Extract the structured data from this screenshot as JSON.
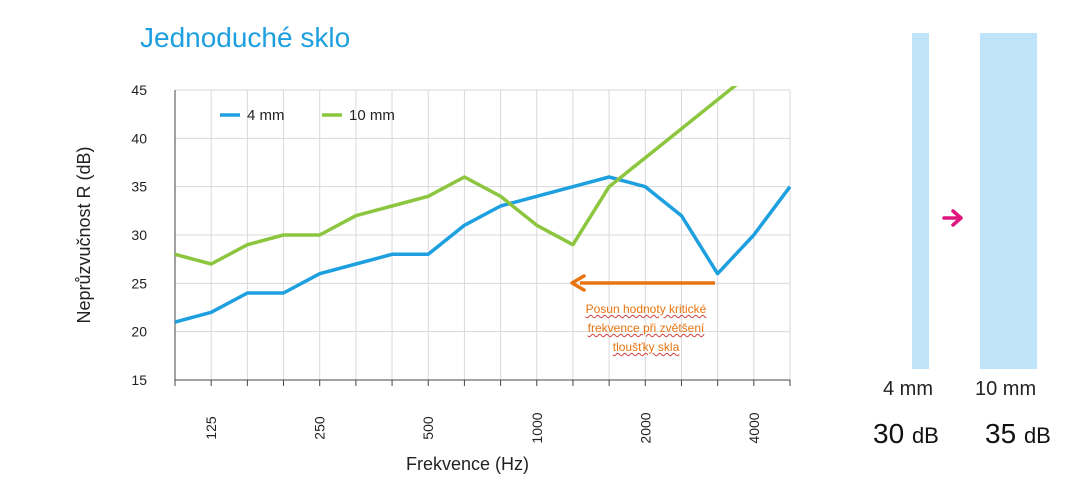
{
  "title": "Jednoduché sklo",
  "chart_data": {
    "type": "line",
    "ylabel": "Neprůzvučnost R (dB)",
    "xlabel": "Frekvence (Hz)",
    "ylim": [
      15,
      45
    ],
    "y_ticks": [
      15,
      20,
      25,
      30,
      35,
      40,
      45
    ],
    "x_tick_labels": [
      "125",
      "250",
      "500",
      "1000",
      "2000",
      "4000"
    ],
    "x": [
      "100",
      "125",
      "160",
      "200",
      "250",
      "315",
      "400",
      "500",
      "630",
      "800",
      "1000",
      "1250",
      "1600",
      "2000",
      "2500",
      "3150",
      "4000",
      "5000"
    ],
    "grid": true,
    "legend_position": "top-left",
    "series": [
      {
        "name": "4 mm",
        "color": "#1ea0e0",
        "values": [
          21,
          22,
          24,
          24,
          26,
          27,
          28,
          28,
          31,
          33,
          34,
          35,
          36,
          35,
          32,
          26,
          30,
          35
        ]
      },
      {
        "name": "10 mm",
        "color": "#8cc63f",
        "values": [
          28,
          27,
          29,
          30,
          30,
          32,
          33,
          34,
          36,
          34,
          31,
          29,
          35,
          38,
          41,
          44,
          47,
          null
        ]
      }
    ],
    "annotation": {
      "text_lines": [
        "Posun hodnoty kritické",
        "frekvence při zvětšení",
        "tloušťky skla"
      ],
      "arrow_color": "#e8740f"
    }
  },
  "glass_panel": {
    "thin": {
      "label": "4 mm",
      "db_value": "30",
      "db_unit": "dB"
    },
    "thick": {
      "label": "10 mm",
      "db_value": "35",
      "db_unit": "dB"
    },
    "arrow_color": "#e0157f",
    "glass_color": "#bfe3f8"
  }
}
